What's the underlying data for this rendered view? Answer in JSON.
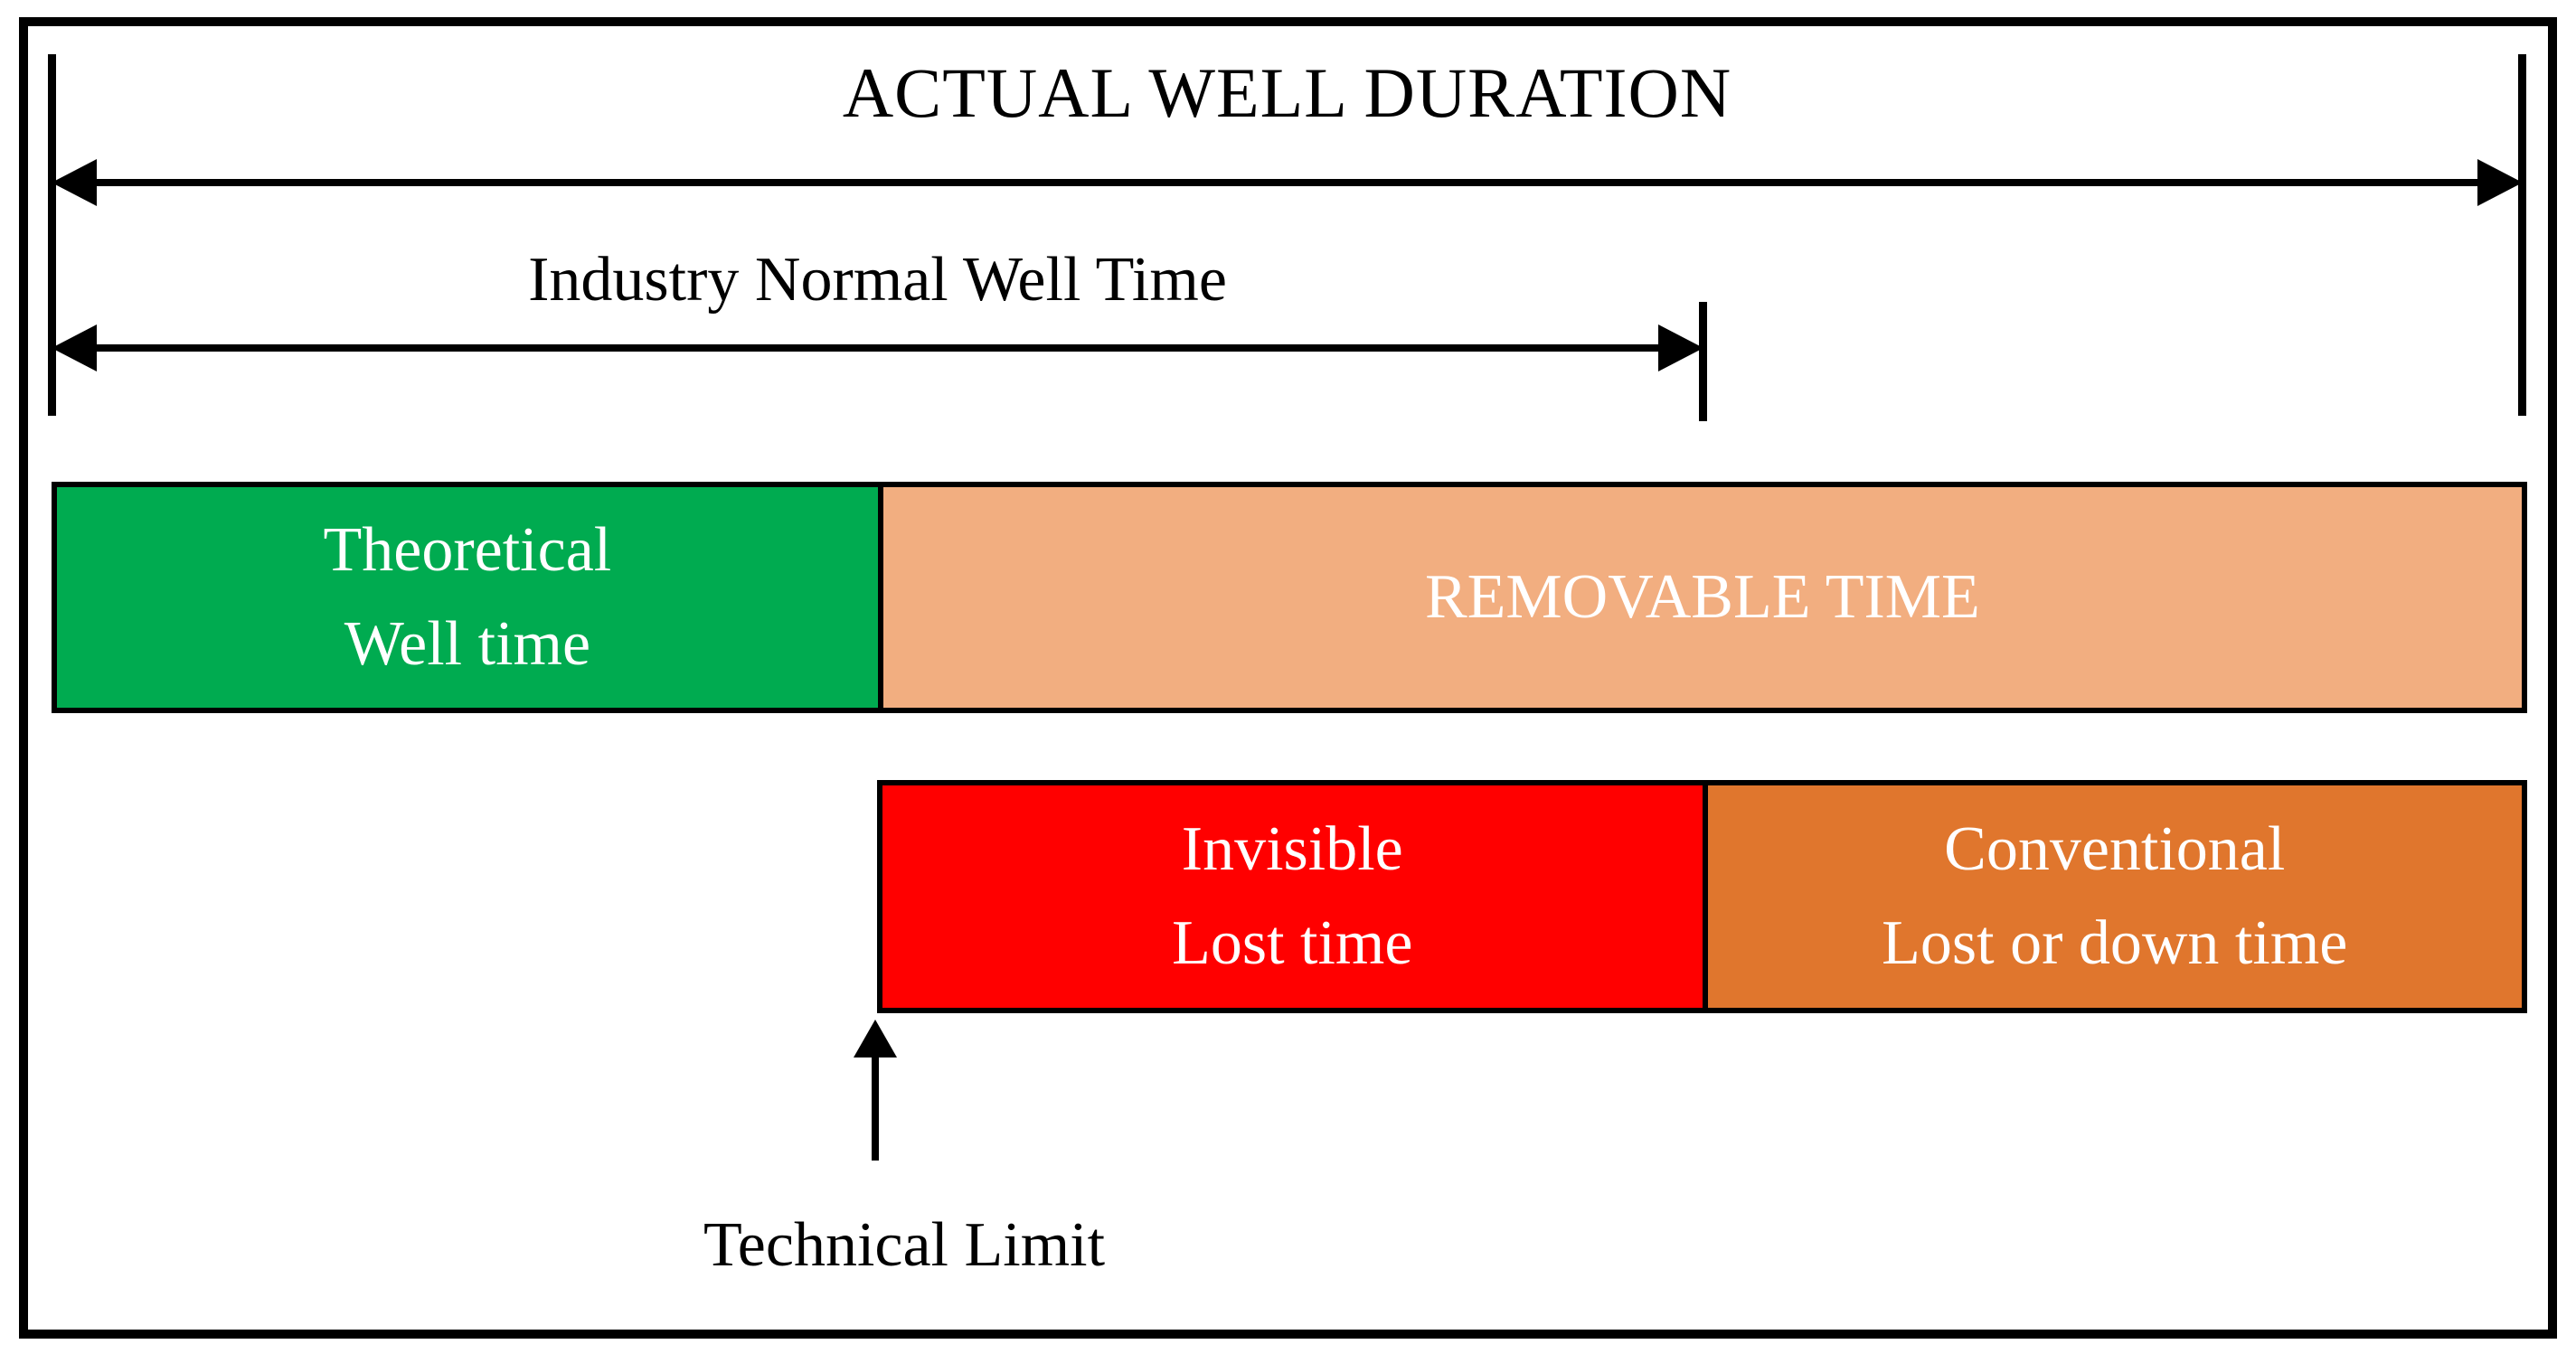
{
  "diagram": {
    "title": "ACTUAL WELL DURATION",
    "industry_arrow_label": "Industry Normal Well Time",
    "technical_limit_label": "Technical Limit",
    "segments": {
      "theoretical": {
        "line1": "Theoretical",
        "line2": "Well time",
        "color": "#00AB50"
      },
      "removable": {
        "label": "REMOVABLE TIME",
        "color": "#F2AE80"
      },
      "invisible": {
        "line1": "Invisible",
        "line2": "Lost time",
        "color": "#FF0000"
      },
      "conventional": {
        "line1": "Conventional",
        "line2": "Lost or down time",
        "color": "#E0762D"
      }
    },
    "colors": {
      "line": "#000000",
      "segment_text": "#FFFFFF",
      "background": "#FFFFFF"
    }
  }
}
